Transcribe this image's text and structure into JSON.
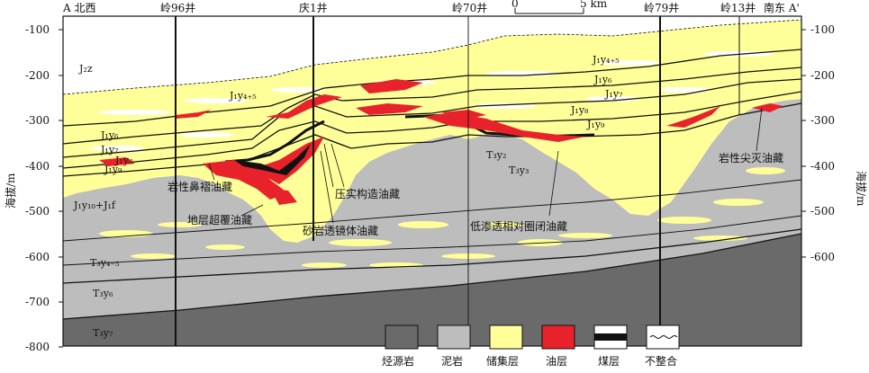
{
  "header": {
    "left_end": "A 北西",
    "right_end": "南东 A'",
    "wells": [
      "岭96井",
      "庆1井",
      "岭70井",
      "岭79井",
      "岭13井"
    ],
    "scale": {
      "zero": "0",
      "five": "5 km"
    }
  },
  "axes": {
    "ylabel_left": "海拔/m",
    "ylabel_right": "海拔/m",
    "left_ticks": [
      "-100",
      "-200",
      "-300",
      "-400",
      "-500",
      "-600",
      "-700",
      "-800"
    ],
    "right_ticks": [
      "-100",
      "-200",
      "-300",
      "-400",
      "-500",
      "-600"
    ]
  },
  "strata": {
    "J2z": "J₂z",
    "J1y45_left": "J₁y₄₊₅",
    "J1y45_right": "J₁y₄₊₅",
    "J1y6_left": "J₁y₆",
    "J1y6_right": "J₁y₆",
    "J1y7_left": "J₁y₇",
    "J1y7_right": "J₁y₇",
    "J1y8_left": "J₁y₈",
    "J1y8_right": "J₁y₈",
    "J1y9_left": "J₁y₉",
    "J1y9_right": "J₁y₉",
    "J1y10f": "J₁y₁₀+J₁f",
    "T3y2": "T₃y₂",
    "T3y3": "T₃y₃",
    "T3y45": "T₃y₄₋₅",
    "T3y6": "T₃y₆",
    "T3y7": "T₃y₇"
  },
  "annotations": {
    "nose": "岩性鼻褶油藏",
    "overlap": "地层超覆油藏",
    "compaction": "压实构造油藏",
    "lens": "砂岩透镜体油藏",
    "lowperm": "低渗透相对圈闭油藏",
    "pinchout": "岩性尖灭油藏"
  },
  "legend": [
    {
      "label": "烃源岩",
      "color": "#6a6a6a"
    },
    {
      "label": "泥岩",
      "color": "#bdbdbd"
    },
    {
      "label": "储集层",
      "color": "#ffff99"
    },
    {
      "label": "油层",
      "color": "#e8222b"
    },
    {
      "label": "煤层",
      "color": "#111111"
    },
    {
      "label": "不整合",
      "color": "#ffffff"
    }
  ]
}
